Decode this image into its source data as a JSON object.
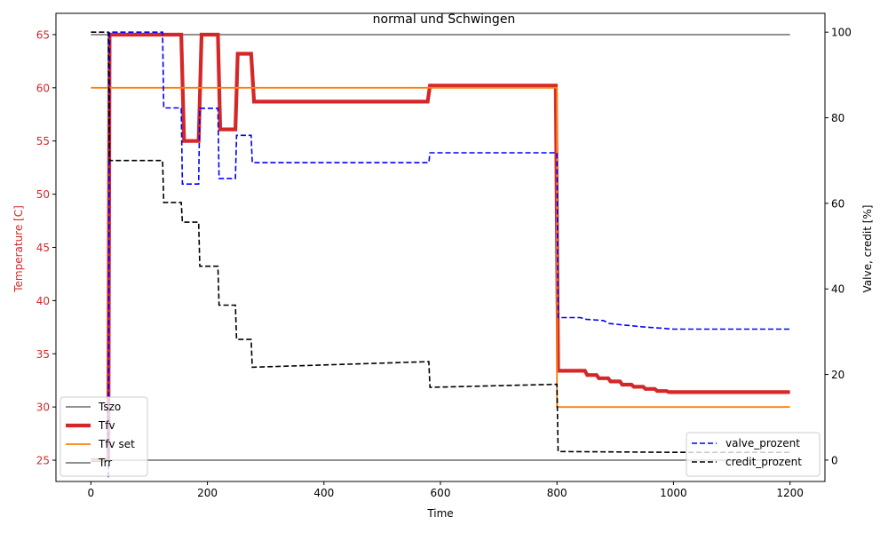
{
  "chart_data": {
    "type": "line",
    "title": "normal und Schwingen",
    "xlabel": "Time",
    "ylabel_left": "Temperature [C]",
    "ylabel_right": "Valve, credit [%]",
    "xlim": [
      -60,
      1260
    ],
    "ylim_left": [
      23,
      67
    ],
    "ylim_right": [
      -5,
      104.4
    ],
    "x_ticks": [
      0,
      200,
      400,
      600,
      800,
      1000,
      1200
    ],
    "y_left_ticks": [
      25,
      30,
      35,
      40,
      45,
      50,
      55,
      60,
      65
    ],
    "y_right_ticks": [
      0,
      20,
      40,
      60,
      80,
      100
    ],
    "grid": false,
    "legend_left": {
      "placement": "lower-left",
      "entries": [
        "Tszo",
        "Tfv",
        "Tfv set",
        "Trr"
      ]
    },
    "legend_right": {
      "placement": "lower-right",
      "entries": [
        "valve_prozent",
        "credit_prozent"
      ]
    },
    "colors": {
      "left_axis": "#d62728",
      "right_axis": "#000000"
    },
    "series": [
      {
        "name": "Tszo",
        "axis": "left",
        "color": "#808080",
        "style": "solid",
        "width": 1.8,
        "x": [
          0,
          1200
        ],
        "y": [
          65,
          65
        ]
      },
      {
        "name": "Tfv",
        "axis": "left",
        "color": "#d62728",
        "style": "solid",
        "width": 4.2,
        "step": true,
        "x": [
          0,
          30,
          32,
          155,
          160,
          185,
          190,
          218,
          222,
          248,
          252,
          275,
          280,
          578,
          582,
          798,
          802,
          848,
          852,
          868,
          872,
          888,
          892,
          908,
          912,
          928,
          932,
          948,
          952,
          968,
          972,
          988,
          992,
          1200
        ],
        "y": [
          25,
          25,
          65,
          65,
          55,
          55,
          65,
          65,
          56.1,
          56.1,
          63.2,
          63.2,
          58.7,
          58.7,
          60.2,
          60.2,
          33.4,
          33.4,
          33,
          33,
          32.7,
          32.7,
          32.4,
          32.4,
          32.1,
          32.1,
          31.9,
          31.9,
          31.7,
          31.7,
          31.5,
          31.5,
          31.4,
          31.4
        ]
      },
      {
        "name": "Tfv set",
        "axis": "left",
        "color": "#ff7f0e",
        "style": "solid",
        "width": 1.8,
        "step": true,
        "x": [
          0,
          800,
          800,
          1200
        ],
        "y": [
          60,
          60,
          30,
          30
        ]
      },
      {
        "name": "Trr",
        "axis": "left",
        "color": "#808080",
        "style": "solid",
        "width": 1.8,
        "x": [
          0,
          1200
        ],
        "y": [
          25,
          25
        ]
      },
      {
        "name": "valve_prozent",
        "axis": "right",
        "color": "#0000ff",
        "style": "dashed",
        "width": 1.6,
        "step": true,
        "x": [
          30,
          32,
          123,
          125,
          155,
          157,
          185,
          187,
          218,
          220,
          248,
          250,
          275,
          277,
          580,
          582,
          800,
          802,
          840,
          850,
          880,
          890,
          920,
          950,
          980,
          1000,
          1200
        ],
        "y": [
          -4,
          100,
          100,
          82.3,
          82.3,
          64.5,
          64.5,
          82.2,
          82.2,
          65.8,
          65.8,
          75.9,
          75.9,
          69.5,
          69.5,
          71.8,
          71.8,
          33.3,
          33.3,
          32.9,
          32.6,
          31.9,
          31.5,
          31.1,
          30.8,
          30.6,
          30.6
        ]
      },
      {
        "name": "credit_prozent",
        "axis": "right",
        "color": "#000000",
        "style": "dashed",
        "width": 1.6,
        "step": true,
        "x": [
          0,
          30,
          32,
          123,
          125,
          155,
          157,
          185,
          187,
          218,
          220,
          248,
          250,
          275,
          277,
          580,
          582,
          800,
          802,
          1000,
          1200
        ],
        "y": [
          100,
          100,
          70,
          70,
          60.2,
          60.2,
          55.6,
          55.6,
          45.3,
          45.3,
          36.2,
          36.2,
          28.2,
          28.2,
          21.7,
          23,
          17,
          17.7,
          2,
          1.8,
          1.8
        ]
      }
    ]
  }
}
